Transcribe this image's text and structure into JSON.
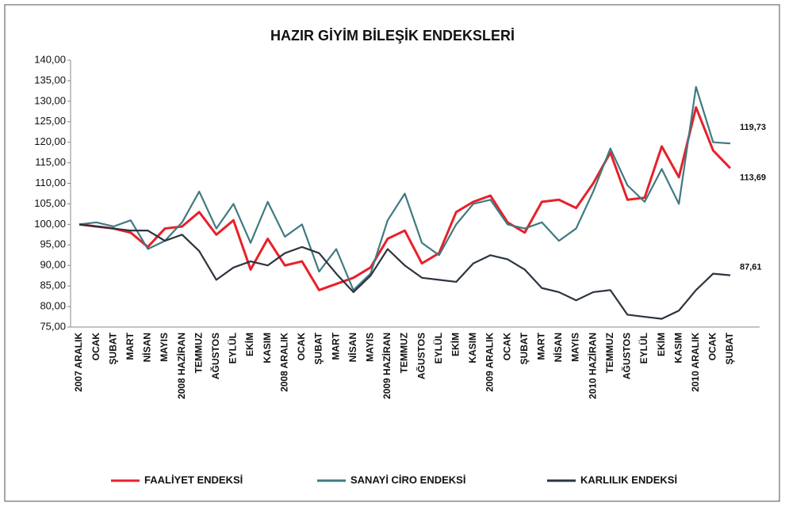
{
  "chart_data": {
    "type": "line",
    "title": "HAZIR GİYİM BİLEŞİK ENDEKSLERİ",
    "categories": [
      "2007 ARALIK",
      "OCAK",
      "ŞUBAT",
      "MART",
      "NİSAN",
      "MAYIS",
      "2008 HAZİRAN",
      "TEMMUZ",
      "AĞUSTOS",
      "EYLÜL",
      "EKİM",
      "KASIM",
      "2008 ARALIK",
      "OCAK",
      "ŞUBAT",
      "MART",
      "NİSAN",
      "MAYIS",
      "2009 HAZİRAN",
      "TEMMUZ",
      "AĞUSTOS",
      "EYLÜL",
      "EKİM",
      "KASIM",
      "2009 ARALIK",
      "OCAK",
      "ŞUBAT",
      "MART",
      "NİSAN",
      "MAYIS",
      "2010 HAZİRAN",
      "TEMMUZ",
      "AĞUSTOS",
      "EYLÜL",
      "EKİM",
      "KASIM",
      "2010 ARALIK",
      "OCAK",
      "ŞUBAT"
    ],
    "series": [
      {
        "name": "FAALİYET ENDEKSİ",
        "color": "#e8202a",
        "values": [
          100,
          99.5,
          99,
          98,
          94.5,
          99,
          99.5,
          103,
          97.5,
          101,
          89,
          96.5,
          90,
          91,
          84,
          85.5,
          87,
          89.5,
          96.5,
          98.5,
          90.5,
          93,
          103,
          105.5,
          107,
          100.5,
          98,
          105.5,
          106,
          104,
          110,
          117.5,
          106,
          106.5,
          119,
          111.5,
          128.5,
          118,
          113.69
        ],
        "value_labels": [
          null,
          null,
          null,
          null,
          null,
          null,
          null,
          null,
          null,
          null,
          null,
          null,
          null,
          null,
          null,
          null,
          null,
          null,
          null,
          null,
          null,
          null,
          null,
          null,
          null,
          null,
          null,
          null,
          null,
          null,
          null,
          null,
          null,
          null,
          null,
          null,
          null,
          null,
          "113,69"
        ]
      },
      {
        "name": "SANAYİ CİRO ENDEKSİ",
        "color": "#3f7a80",
        "values": [
          100,
          100.5,
          99.5,
          101,
          94,
          96,
          100.5,
          108,
          99,
          105,
          95.5,
          105.5,
          97,
          100,
          88.5,
          94,
          84,
          88,
          101,
          107.5,
          95.5,
          92.5,
          100,
          105,
          106,
          100,
          99,
          100.5,
          96,
          99,
          108,
          118.5,
          109.5,
          105.5,
          113.5,
          105,
          133.5,
          120,
          119.73
        ],
        "value_labels": [
          null,
          null,
          null,
          null,
          null,
          null,
          null,
          null,
          null,
          null,
          null,
          null,
          null,
          null,
          null,
          null,
          null,
          null,
          null,
          null,
          null,
          null,
          null,
          null,
          null,
          null,
          null,
          null,
          null,
          null,
          null,
          null,
          null,
          null,
          null,
          null,
          null,
          null,
          "119,73"
        ]
      },
      {
        "name": "KARLILIK ENDEKSİ",
        "color": "#2c3440",
        "values": [
          100,
          99.5,
          99,
          98.5,
          98.5,
          96,
          97.5,
          93.5,
          86.5,
          89.5,
          91,
          90,
          93,
          94.5,
          93,
          88,
          83.5,
          87.5,
          94,
          90,
          87,
          86.5,
          86,
          90.5,
          92.5,
          91.5,
          89,
          84.5,
          83.5,
          81.5,
          83.5,
          84,
          78,
          77.5,
          77,
          79,
          84,
          88,
          87.61
        ],
        "value_labels": [
          null,
          null,
          null,
          null,
          null,
          null,
          null,
          null,
          null,
          null,
          null,
          null,
          null,
          null,
          null,
          null,
          null,
          null,
          null,
          null,
          null,
          null,
          null,
          null,
          null,
          null,
          null,
          null,
          null,
          null,
          null,
          null,
          null,
          null,
          null,
          null,
          null,
          null,
          "87,61"
        ]
      }
    ],
    "ylim": [
      75,
      140
    ],
    "yticks": [
      {
        "value": 75,
        "label": "75,00"
      },
      {
        "value": 80,
        "label": "80,00"
      },
      {
        "value": 85,
        "label": "85,00"
      },
      {
        "value": 90,
        "label": "90,00"
      },
      {
        "value": 95,
        "label": "95,00"
      },
      {
        "value": 100,
        "label": "100,00"
      },
      {
        "value": 105,
        "label": "105,00"
      },
      {
        "value": 110,
        "label": "110,00"
      },
      {
        "value": 115,
        "label": "115,00"
      },
      {
        "value": 120,
        "label": "120,00"
      },
      {
        "value": 125,
        "label": "125,00"
      },
      {
        "value": 130,
        "label": "130,00"
      },
      {
        "value": 135,
        "label": "135,00"
      },
      {
        "value": 140,
        "label": "140,00"
      }
    ],
    "grid": false,
    "legend": "bottom"
  }
}
